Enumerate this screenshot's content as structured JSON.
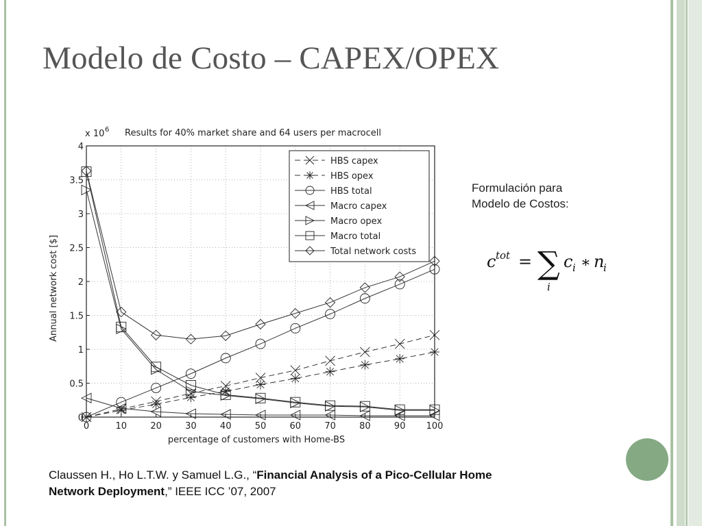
{
  "slide": {
    "title": "Modelo de Costo – CAPEX/OPEX",
    "formula_label_line1": "Formulación para",
    "formula_label_line2": "Modelo de Costos:",
    "citation": {
      "prefix": "Claussen H., Ho L.T.W. y Samuel L.G., “",
      "title_bold_1": "Financial Analysis of a Pico-Cellular Home",
      "title_bold_2": "Network Deployment",
      "suffix": ",” IEEE ICC ’07, 2007"
    },
    "colors": {
      "frame": "#a9c1a4",
      "accent_circle": "#84a983",
      "title": "#555555"
    }
  },
  "formula": {
    "lhs_base": "c",
    "lhs_sup": "tot",
    "equals": "=",
    "sum_symbol": "∑",
    "sum_index": "i",
    "term_base": "c",
    "term_sub": "i",
    "times": "∗",
    "term2_base": "n",
    "term2_sub": "i"
  },
  "chart_data": {
    "type": "line",
    "title": "Results for 40% market share and 64 users per macrocell",
    "xlabel": "percentage of customers with Home-BS",
    "ylabel": "Annual network cost [$]",
    "y_multiplier": "x 10",
    "y_multiplier_exp": "6",
    "xlim": [
      0,
      100
    ],
    "ylim": [
      0,
      4
    ],
    "xticks": [
      0,
      10,
      20,
      30,
      40,
      50,
      60,
      70,
      80,
      90,
      100
    ],
    "yticks": [
      0,
      0.5,
      1,
      1.5,
      2,
      2.5,
      3,
      3.5,
      4
    ],
    "ytick_labels": [
      "0",
      "0.5",
      "1",
      "1.5",
      "2",
      "2.5",
      "3",
      "3.5",
      "4"
    ],
    "legend_position": "top-right",
    "grid": true,
    "x": [
      0,
      10,
      20,
      30,
      40,
      50,
      60,
      70,
      80,
      90,
      100
    ],
    "series": [
      {
        "name": "HBS capex",
        "marker": "x",
        "dash": "8,5",
        "values": [
          0,
          0.12,
          0.23,
          0.35,
          0.46,
          0.58,
          0.69,
          0.83,
          0.96,
          1.08,
          1.21
        ]
      },
      {
        "name": "HBS opex",
        "marker": "star",
        "dash": "8,5",
        "values": [
          0,
          0.1,
          0.19,
          0.29,
          0.38,
          0.48,
          0.57,
          0.67,
          0.77,
          0.86,
          0.96
        ]
      },
      {
        "name": "HBS total",
        "marker": "circle",
        "dash": "",
        "values": [
          0,
          0.22,
          0.43,
          0.64,
          0.87,
          1.08,
          1.31,
          1.52,
          1.75,
          1.96,
          2.18
        ]
      },
      {
        "name": "Macro capex",
        "marker": "triangle-left",
        "dash": "",
        "values": [
          0.28,
          0.13,
          0.08,
          0.05,
          0.04,
          0.03,
          0.03,
          0.03,
          0.02,
          0.02,
          0.02
        ]
      },
      {
        "name": "Macro opex",
        "marker": "triangle-right",
        "dash": "",
        "values": [
          3.35,
          1.3,
          0.7,
          0.38,
          0.32,
          0.27,
          0.21,
          0.16,
          0.15,
          0.1,
          0.1
        ]
      },
      {
        "name": "Macro total",
        "marker": "square",
        "dash": "",
        "values": [
          3.62,
          1.33,
          0.74,
          0.47,
          0.33,
          0.28,
          0.22,
          0.17,
          0.16,
          0.11,
          0.11
        ]
      },
      {
        "name": "Total network costs",
        "marker": "diamond",
        "dash": "",
        "values": [
          3.63,
          1.55,
          1.21,
          1.15,
          1.2,
          1.37,
          1.53,
          1.69,
          1.91,
          2.07,
          2.3
        ]
      }
    ]
  }
}
